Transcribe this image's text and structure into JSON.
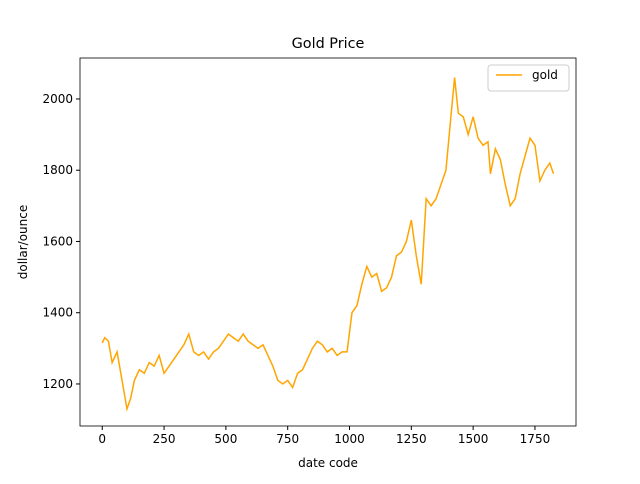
{
  "chart_data": {
    "type": "line",
    "title": "Gold Price",
    "x_label": "date code",
    "y_label": "dollar/ounce",
    "series": [
      {
        "name": "gold",
        "color": "#ffa500",
        "x": [
          0,
          10,
          25,
          40,
          60,
          75,
          90,
          100,
          115,
          130,
          150,
          170,
          190,
          210,
          230,
          250,
          270,
          290,
          310,
          330,
          350,
          370,
          390,
          410,
          430,
          450,
          470,
          490,
          510,
          530,
          550,
          570,
          590,
          610,
          630,
          650,
          670,
          690,
          710,
          730,
          750,
          770,
          790,
          810,
          830,
          850,
          870,
          890,
          910,
          930,
          950,
          970,
          990,
          1010,
          1030,
          1050,
          1070,
          1090,
          1110,
          1130,
          1150,
          1170,
          1190,
          1210,
          1230,
          1250,
          1270,
          1290,
          1310,
          1330,
          1350,
          1370,
          1390,
          1410,
          1425,
          1440,
          1460,
          1480,
          1500,
          1520,
          1540,
          1560,
          1570,
          1590,
          1610,
          1630,
          1650,
          1670,
          1690,
          1710,
          1730,
          1750,
          1770,
          1790,
          1810,
          1825
        ],
        "values": [
          1315,
          1330,
          1320,
          1260,
          1290,
          1230,
          1170,
          1130,
          1160,
          1210,
          1240,
          1230,
          1260,
          1250,
          1280,
          1230,
          1250,
          1270,
          1290,
          1310,
          1340,
          1290,
          1280,
          1290,
          1270,
          1290,
          1300,
          1320,
          1340,
          1330,
          1320,
          1340,
          1320,
          1310,
          1300,
          1310,
          1280,
          1250,
          1210,
          1200,
          1210,
          1190,
          1230,
          1240,
          1270,
          1300,
          1320,
          1310,
          1290,
          1300,
          1280,
          1290,
          1290,
          1400,
          1420,
          1480,
          1530,
          1500,
          1510,
          1460,
          1470,
          1500,
          1560,
          1570,
          1600,
          1660,
          1560,
          1480,
          1720,
          1700,
          1720,
          1760,
          1800,
          1950,
          2060,
          1960,
          1950,
          1900,
          1950,
          1890,
          1870,
          1880,
          1790,
          1860,
          1830,
          1760,
          1700,
          1720,
          1790,
          1840,
          1890,
          1870,
          1770,
          1800,
          1820,
          1790
        ]
      }
    ],
    "xlim": [
      -90,
      1916
    ],
    "xticks": [
      0,
      250,
      500,
      750,
      1000,
      1250,
      1500,
      1750
    ],
    "ylim": [
      1082,
      2115
    ],
    "yticks": [
      1200,
      1400,
      1600,
      1800,
      2000
    ],
    "grid": false,
    "legend": "upper right"
  }
}
